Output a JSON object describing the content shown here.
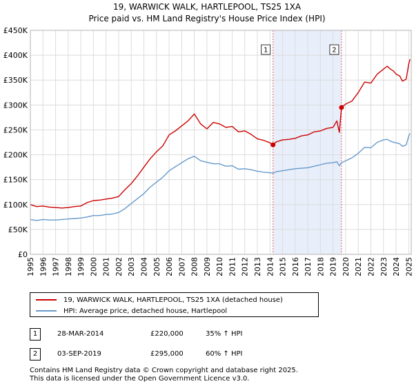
{
  "chart_data": {
    "type": "line",
    "title": "19, WARWICK WALK, HARTLEPOOL, TS25 1XA",
    "subtitle": "Price paid vs. HM Land Registry's House Price Index (HPI)",
    "xlabel": "",
    "ylabel": "",
    "xlim": [
      1995,
      2025.2
    ],
    "ylim": [
      0,
      450000
    ],
    "grid": true,
    "ytick_values": [
      0,
      50000,
      100000,
      150000,
      200000,
      250000,
      300000,
      350000,
      400000,
      450000
    ],
    "ytick_labels": [
      "£0",
      "£50K",
      "£100K",
      "£150K",
      "£200K",
      "£250K",
      "£300K",
      "£350K",
      "£400K",
      "£450K"
    ],
    "xtick_values": [
      1995,
      1996,
      1997,
      1998,
      1999,
      2000,
      2001,
      2002,
      2003,
      2004,
      2005,
      2006,
      2007,
      2008,
      2009,
      2010,
      2011,
      2012,
      2013,
      2014,
      2015,
      2016,
      2017,
      2018,
      2019,
      2020,
      2021,
      2022,
      2023,
      2024,
      2025
    ],
    "xtick_labels": [
      "1995",
      "1996",
      "1997",
      "1998",
      "1999",
      "2000",
      "2001",
      "2002",
      "2003",
      "2004",
      "2005",
      "2006",
      "2007",
      "2008",
      "2009",
      "2010",
      "2011",
      "2012",
      "2013",
      "2014",
      "2015",
      "2016",
      "2017",
      "2018",
      "2019",
      "2020",
      "2021",
      "2022",
      "2023",
      "2024",
      "2025"
    ],
    "shaded_period": [
      2014.24,
      2019.67
    ],
    "series": [
      {
        "name": "19, WARWICK WALK, HARTLEPOOL, TS25 1XA (detached house)",
        "color": "#cc0000",
        "x": [
          1995,
          1995.5,
          1996,
          1996.5,
          1997,
          1997.5,
          1998,
          1998.5,
          1999,
          1999.5,
          2000,
          2000.5,
          2001,
          2001.5,
          2002,
          2002.5,
          2003,
          2003.5,
          2004,
          2004.5,
          2005,
          2005.5,
          2006,
          2006.5,
          2007,
          2007.5,
          2008,
          2008.5,
          2009,
          2009.5,
          2010,
          2010.5,
          2011,
          2011.5,
          2012,
          2012.5,
          2013,
          2013.5,
          2014,
          2014.24,
          2014.5,
          2015,
          2015.5,
          2016,
          2016.5,
          2017,
          2017.5,
          2018,
          2018.5,
          2019,
          2019.3,
          2019.5,
          2019.67,
          2020,
          2020.5,
          2021,
          2021.5,
          2022,
          2022.5,
          2023,
          2023.3,
          2023.5,
          2023.8,
          2024,
          2024.3,
          2024.5,
          2024.8,
          2025,
          2025.1
        ],
        "values": [
          100000,
          96000,
          97000,
          95000,
          94000,
          93000,
          94000,
          96000,
          97000,
          104000,
          108000,
          109000,
          111000,
          113000,
          116000,
          130000,
          142000,
          158000,
          175000,
          192000,
          206000,
          218000,
          240000,
          248000,
          258000,
          268000,
          282000,
          262000,
          252000,
          265000,
          262000,
          255000,
          257000,
          246000,
          248000,
          241000,
          232000,
          229000,
          224000,
          220000,
          226000,
          230000,
          231000,
          233000,
          238000,
          240000,
          246000,
          248000,
          253000,
          255000,
          268000,
          245000,
          295000,
          302000,
          308000,
          325000,
          346000,
          344000,
          362000,
          372000,
          378000,
          373000,
          368000,
          362000,
          358000,
          348000,
          352000,
          382000,
          392000
        ]
      },
      {
        "name": "HPI: Average price, detached house, Hartlepool",
        "color": "#6699cc",
        "x": [
          1995,
          1995.5,
          1996,
          1996.5,
          1997,
          1997.5,
          1998,
          1998.5,
          1999,
          1999.5,
          2000,
          2000.5,
          2001,
          2001.5,
          2002,
          2002.5,
          2003,
          2003.5,
          2004,
          2004.5,
          2005,
          2005.5,
          2006,
          2006.5,
          2007,
          2007.5,
          2008,
          2008.5,
          2009,
          2009.5,
          2010,
          2010.5,
          2011,
          2011.5,
          2012,
          2012.5,
          2013,
          2013.5,
          2014,
          2014.24,
          2014.5,
          2015,
          2015.5,
          2016,
          2016.5,
          2017,
          2017.5,
          2018,
          2018.5,
          2019,
          2019.3,
          2019.5,
          2019.67,
          2020,
          2020.5,
          2021,
          2021.5,
          2022,
          2022.5,
          2023,
          2023.3,
          2023.5,
          2023.8,
          2024,
          2024.3,
          2024.5,
          2024.8,
          2025,
          2025.1
        ],
        "values": [
          70000,
          68000,
          70000,
          69000,
          69000,
          70000,
          71000,
          72000,
          73000,
          75000,
          78000,
          78000,
          80000,
          81000,
          84000,
          92000,
          102000,
          112000,
          122000,
          135000,
          145000,
          155000,
          168000,
          176000,
          184000,
          192000,
          197000,
          188000,
          185000,
          182000,
          182000,
          177000,
          178000,
          171000,
          172000,
          170000,
          167000,
          165000,
          164000,
          163000,
          166000,
          168000,
          170000,
          172000,
          173000,
          174000,
          177000,
          180000,
          183000,
          184000,
          186000,
          178000,
          184000,
          188000,
          194000,
          203000,
          215000,
          214000,
          225000,
          230000,
          231000,
          228000,
          225000,
          224000,
          222000,
          217000,
          220000,
          237000,
          243000
        ]
      }
    ],
    "markers": [
      {
        "label": "1",
        "x": 2014.24,
        "value": 220000
      },
      {
        "label": "2",
        "x": 2019.67,
        "value": 295000
      }
    ],
    "legend_position": "bottom"
  },
  "legend": {
    "property_label": "19, WARWICK WALK, HARTLEPOOL, TS25 1XA (detached house)",
    "property_color": "#cc0000",
    "hpi_label": "HPI: Average price, detached house, Hartlepool",
    "hpi_color": "#6699cc"
  },
  "sales": [
    {
      "num": "1",
      "date": "28-MAR-2014",
      "price": "£220,000",
      "hpi": "35% ↑ HPI"
    },
    {
      "num": "2",
      "date": "03-SEP-2019",
      "price": "£295,000",
      "hpi": "60% ↑ HPI"
    }
  ],
  "footer": {
    "line1": "Contains HM Land Registry data © Crown copyright and database right 2025.",
    "line2": "This data is licensed under the Open Government Licence v3.0."
  }
}
